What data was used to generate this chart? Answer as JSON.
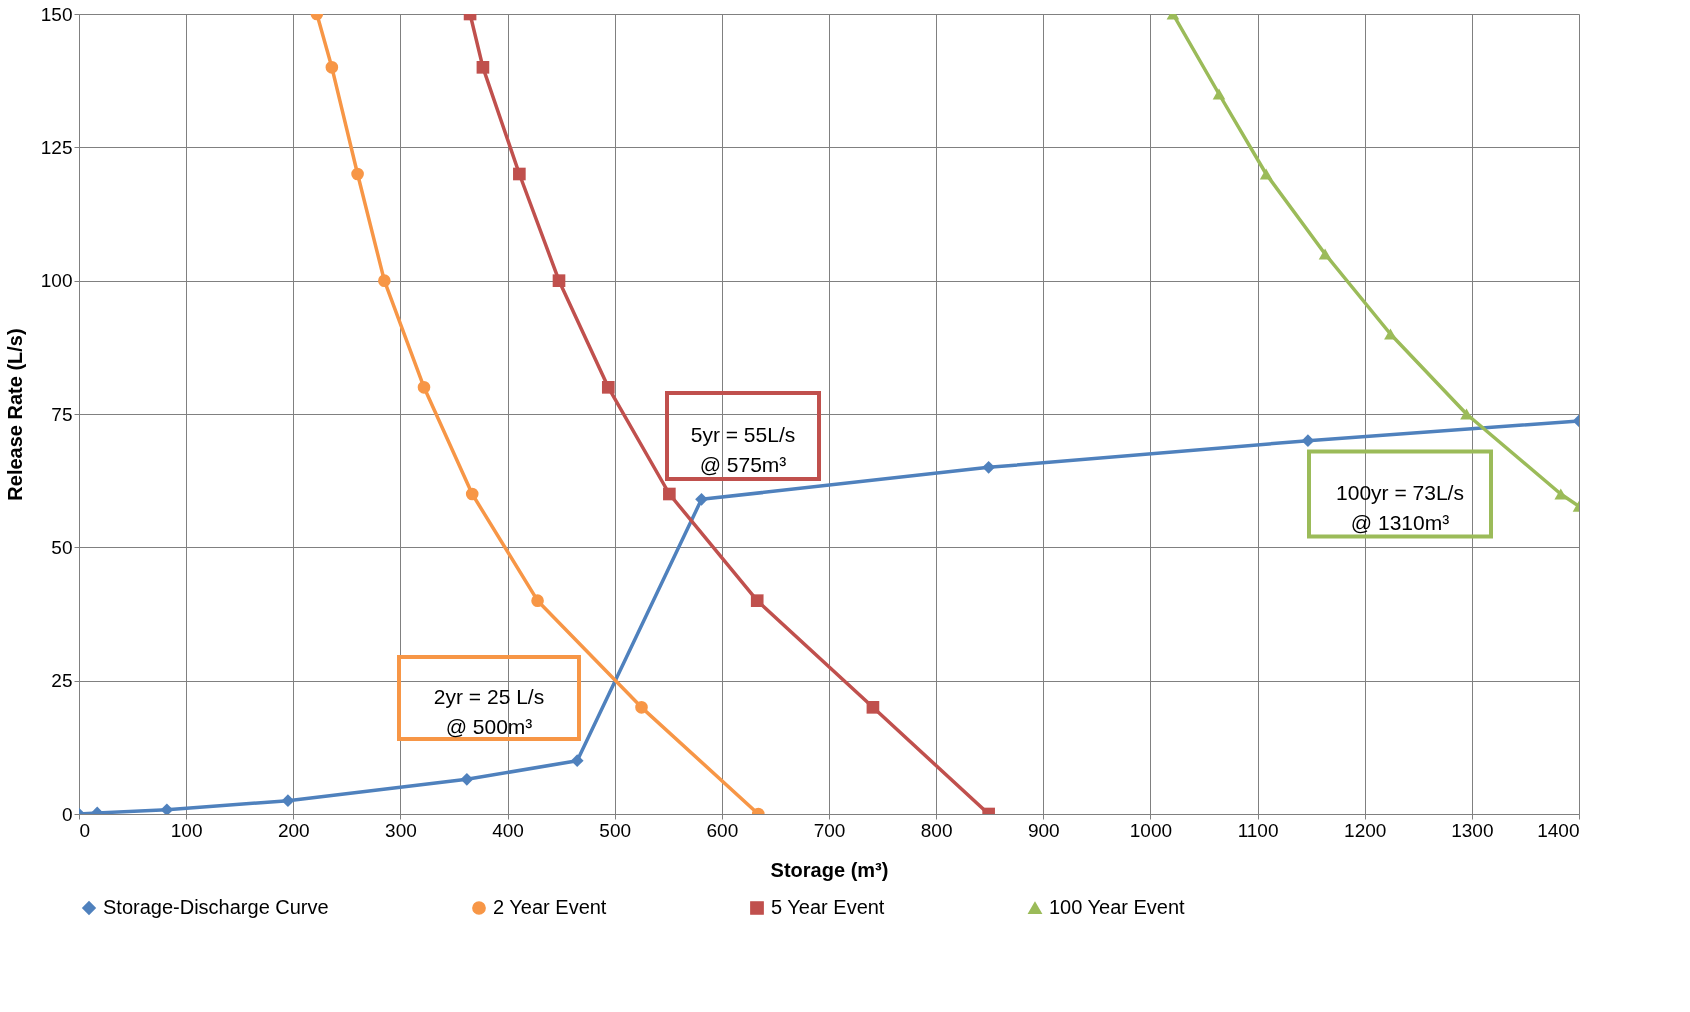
{
  "chart_data": {
    "type": "line",
    "xlabel": "Storage (m³)",
    "ylabel": "Release Rate (L/s)",
    "xlim": [
      0,
      1400
    ],
    "xticks": [
      0,
      100,
      200,
      300,
      400,
      500,
      600,
      700,
      800,
      900,
      1000,
      1100,
      1200,
      1300,
      1400
    ],
    "ylim": [
      0,
      150
    ],
    "yticks": [
      0,
      25,
      50,
      75,
      100,
      125,
      150
    ],
    "grid": true,
    "legend": "bottom",
    "line_style": "solid",
    "series": [
      {
        "name": "Storage-Discharge Curve",
        "color": "#4f81bd",
        "marker": "diamond",
        "x": [
          0,
          17,
          82,
          195,
          362,
          465,
          581,
          849,
          1147,
          1400
        ],
        "values": [
          0,
          0.2,
          0.8,
          2.5,
          6.5,
          10,
          59,
          65,
          70,
          73.7
        ]
      },
      {
        "name": "2 Year Event",
        "color": "#f79646",
        "marker": "circle",
        "x": [
          222,
          236,
          260,
          285,
          322,
          367,
          428,
          525,
          634
        ],
        "values": [
          150,
          140,
          120,
          100,
          80,
          60,
          40,
          20,
          0
        ]
      },
      {
        "name": "5 Year Event",
        "color": "#c0504d",
        "marker": "square",
        "x": [
          365,
          377,
          411,
          448,
          494,
          551,
          633,
          741,
          849
        ],
        "values": [
          150,
          140,
          120,
          100,
          80,
          60,
          40,
          20,
          0
        ]
      },
      {
        "name": "100 Year Event",
        "color": "#9bbb59",
        "marker": "triangle",
        "x": [
          1021,
          1064,
          1108,
          1163,
          1224,
          1295,
          1383,
          1400
        ],
        "values": [
          150,
          135,
          120,
          105,
          90,
          75,
          60,
          57.7
        ]
      }
    ],
    "annotations": [
      "2yr = 25 L/s\n@ 500m³",
      "5yr = 55L/s\n@ 575m³",
      "100yr = 73L/s\n@ 1310m³"
    ]
  }
}
